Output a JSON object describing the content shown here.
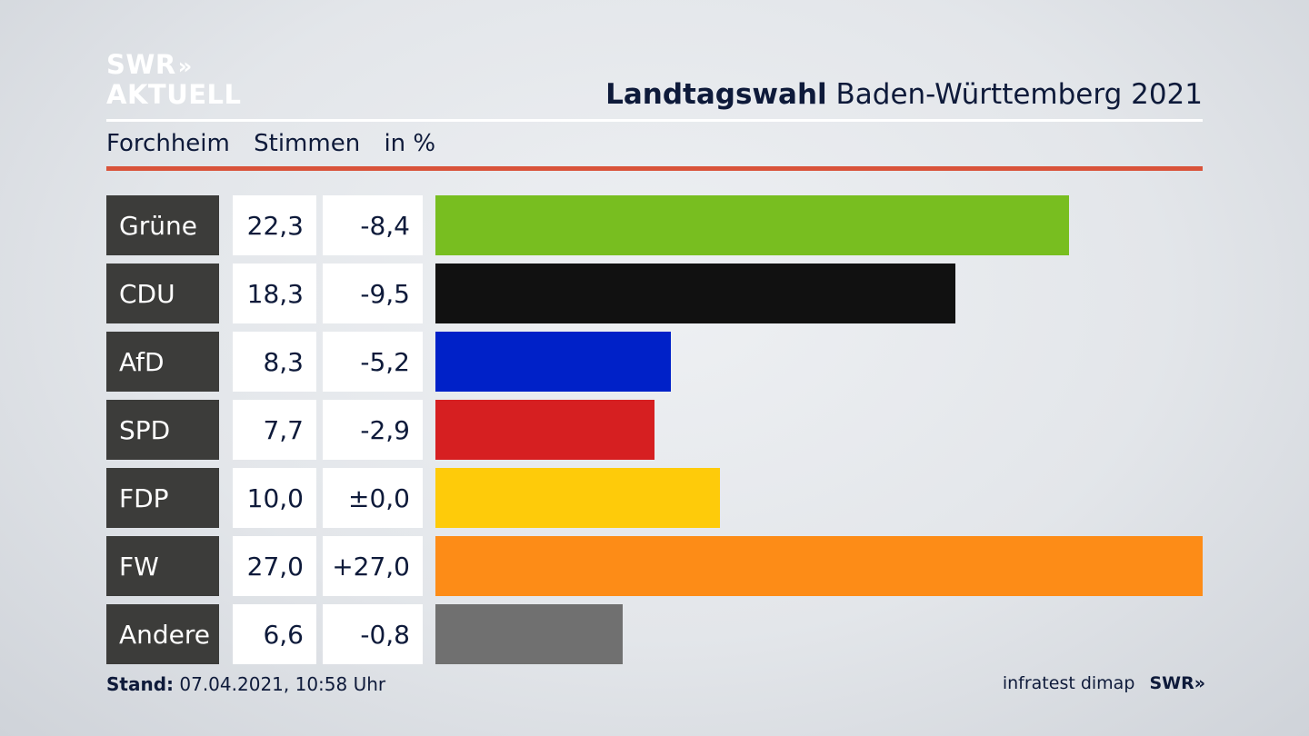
{
  "logo": {
    "line1": "SWR",
    "arrows": "»",
    "line2": "AKTUELL"
  },
  "header": {
    "title_bold": "Landtagswahl",
    "title_rest": "Baden-Württemberg 2021"
  },
  "subheader": {
    "region": "Forchheim",
    "measure": "Stimmen",
    "unit": "in %"
  },
  "colors": {
    "accent_red": "#d9533a",
    "label_bg": "#3c3c3a"
  },
  "chart_data": {
    "type": "bar",
    "orientation": "horizontal",
    "max_value": 27.0,
    "categories": [
      "Grüne",
      "CDU",
      "AfD",
      "SPD",
      "FDP",
      "FW",
      "Andere"
    ],
    "values": [
      22.3,
      18.3,
      8.3,
      7.7,
      10.0,
      27.0,
      6.6
    ],
    "value_labels": [
      "22,3",
      "18,3",
      "8,3",
      "7,7",
      "10,0",
      "27,0",
      "6,6"
    ],
    "changes": [
      "-8,4",
      "-9,5",
      "-5,2",
      "-2,9",
      "±0,0",
      "+27,0",
      "-0,8"
    ],
    "colors": [
      "#78be20",
      "#111111",
      "#0021c8",
      "#d61f21",
      "#fecb0a",
      "#fd8c17",
      "#707070"
    ]
  },
  "footer": {
    "stand_label": "Stand:",
    "stand_value": "07.04.2021, 10:58 Uhr",
    "source": "infratest dimap",
    "brand": "SWR",
    "brand_arrows": "»"
  }
}
